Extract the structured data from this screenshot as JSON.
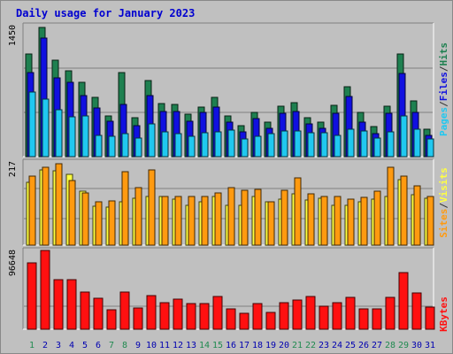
{
  "title": "Daily usage for January 2023",
  "colors": {
    "hits": "#1e8050",
    "files": "#1010e0",
    "pages": "#20c8f0",
    "visits": "#ffff40",
    "sites": "#ff9a10",
    "kbytes": "#ff1010",
    "weekend_label": "#208a50",
    "weekday_label": "#0000b0"
  },
  "chart_data": [
    {
      "type": "bar",
      "title": "Hits / Files / Pages",
      "ymax_label": "1450",
      "ylim": [
        0,
        1450
      ],
      "legend": [
        "Pages",
        "/",
        "Files",
        "/",
        "Hits"
      ],
      "series": [
        {
          "name": "Hits",
          "values": [
            1140,
            1430,
            1070,
            950,
            820,
            660,
            450,
            930,
            430,
            840,
            590,
            580,
            470,
            550,
            660,
            450,
            340,
            490,
            380,
            560,
            600,
            430,
            380,
            570,
            770,
            490,
            330,
            560,
            1140,
            620,
            300
          ]
        },
        {
          "name": "Files",
          "values": [
            930,
            1310,
            870,
            820,
            680,
            540,
            390,
            580,
            340,
            680,
            500,
            500,
            390,
            490,
            550,
            380,
            270,
            420,
            310,
            480,
            500,
            360,
            310,
            480,
            670,
            380,
            250,
            480,
            920,
            490,
            240
          ]
        },
        {
          "name": "Pages",
          "values": [
            720,
            640,
            520,
            440,
            450,
            240,
            230,
            250,
            210,
            360,
            270,
            250,
            230,
            260,
            270,
            290,
            200,
            230,
            250,
            280,
            280,
            260,
            260,
            240,
            300,
            280,
            210,
            270,
            450,
            300,
            200
          ]
        }
      ]
    },
    {
      "type": "bar",
      "title": "Visits / Sites",
      "ymax_label": "217",
      "ylim": [
        0,
        217
      ],
      "legend": [
        "Sites",
        "/",
        "Visits"
      ],
      "series": [
        {
          "name": "Visits",
          "values": [
            163,
            197,
            194,
            184,
            140,
            102,
            100,
            112,
            122,
            126,
            128,
            120,
            104,
            112,
            126,
            104,
            104,
            126,
            112,
            120,
            134,
            118,
            122,
            104,
            104,
            112,
            120,
            126,
            170,
            132,
            122
          ]
        },
        {
          "name": "Sites",
          "values": [
            181,
            203,
            213,
            169,
            136,
            114,
            116,
            192,
            150,
            197,
            127,
            126,
            128,
            126,
            137,
            150,
            142,
            145,
            114,
            143,
            175,
            134,
            126,
            126,
            119,
            124,
            140,
            203,
            179,
            154,
            128
          ]
        }
      ]
    },
    {
      "type": "bar",
      "title": "KBytes",
      "ymax_label": "96648",
      "ylim": [
        0,
        96648
      ],
      "legend": [
        "KBytes"
      ],
      "series": [
        {
          "name": "KBytes",
          "values": [
            81000,
            96300,
            61000,
            60800,
            46000,
            38000,
            24000,
            45200,
            26000,
            41000,
            33000,
            36900,
            31500,
            31500,
            40000,
            25000,
            19500,
            31500,
            21000,
            32100,
            36100,
            39900,
            28400,
            32100,
            39500,
            25000,
            25000,
            39000,
            70000,
            45000,
            27000
          ]
        }
      ]
    }
  ],
  "days": [
    "1",
    "2",
    "3",
    "4",
    "5",
    "6",
    "7",
    "8",
    "9",
    "10",
    "11",
    "12",
    "13",
    "14",
    "15",
    "16",
    "17",
    "18",
    "19",
    "20",
    "21",
    "22",
    "23",
    "24",
    "25",
    "26",
    "27",
    "28",
    "29",
    "30",
    "31"
  ],
  "weekend_days": [
    1,
    7,
    8,
    14,
    15,
    21,
    22,
    28,
    29
  ]
}
